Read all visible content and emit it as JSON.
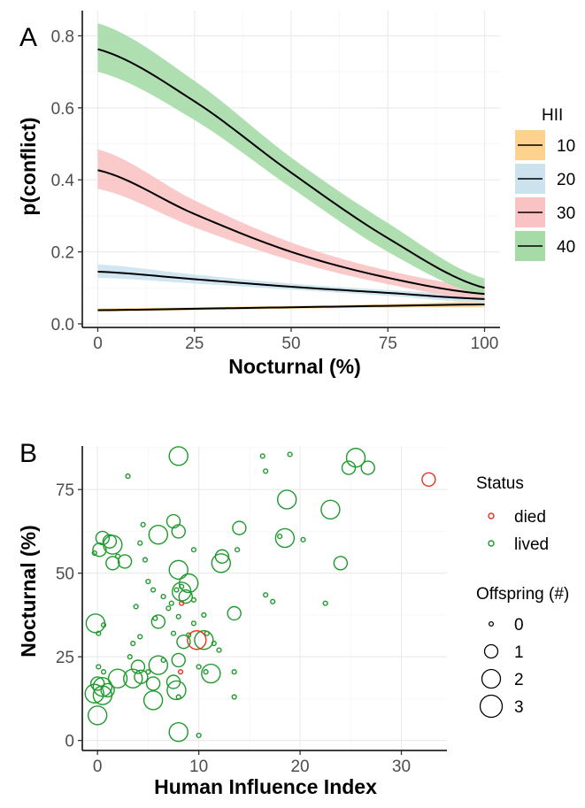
{
  "chart_data": [
    {
      "panel": "A",
      "type": "line",
      "xlabel": "Nocturnal (%)",
      "ylabel": "p(conflict)",
      "xlim": [
        -4,
        104
      ],
      "ylim": [
        -0.01,
        0.87
      ],
      "x_ticks": [
        "0",
        "25",
        "50",
        "75",
        "100"
      ],
      "x_tick_values": [
        0,
        25,
        50,
        75,
        100
      ],
      "y_ticks": [
        "0.0",
        "0.2",
        "0.4",
        "0.6",
        "0.8"
      ],
      "y_tick_values": [
        0.0,
        0.2,
        0.4,
        0.6,
        0.8
      ],
      "grid": true,
      "legend": {
        "title": "HII",
        "position": "right"
      },
      "series": [
        {
          "name": "10",
          "color": "#fdd28e",
          "x": [
            0,
            25,
            50,
            75,
            100
          ],
          "y": [
            0.038,
            0.042,
            0.046,
            0.05,
            0.054
          ],
          "lower": [
            0.034,
            0.038,
            0.042,
            0.045,
            0.046
          ],
          "upper": [
            0.043,
            0.046,
            0.05,
            0.055,
            0.062
          ]
        },
        {
          "name": "20",
          "color": "#cce3ee",
          "x": [
            0,
            25,
            50,
            75,
            100
          ],
          "y": [
            0.145,
            0.124,
            0.103,
            0.086,
            0.069
          ],
          "lower": [
            0.128,
            0.112,
            0.095,
            0.078,
            0.058
          ],
          "upper": [
            0.165,
            0.137,
            0.112,
            0.094,
            0.081
          ]
        },
        {
          "name": "30",
          "color": "#f9c3c3",
          "x": [
            0,
            25,
            50,
            75,
            100
          ],
          "y": [
            0.427,
            0.305,
            0.2,
            0.128,
            0.083
          ],
          "lower": [
            0.375,
            0.268,
            0.176,
            0.11,
            0.066
          ],
          "upper": [
            0.485,
            0.343,
            0.226,
            0.148,
            0.102
          ]
        },
        {
          "name": "40",
          "color": "#a6dba7",
          "x": [
            0,
            25,
            50,
            75,
            100
          ],
          "y": [
            0.763,
            0.618,
            0.42,
            0.238,
            0.1
          ],
          "lower": [
            0.7,
            0.566,
            0.378,
            0.2,
            0.077
          ],
          "upper": [
            0.835,
            0.675,
            0.462,
            0.28,
            0.126
          ]
        }
      ]
    },
    {
      "panel": "B",
      "type": "scatter",
      "xlabel": "Human Influence Index",
      "ylabel": "Nocturnal (%)",
      "xlim": [
        -1.5,
        34.5
      ],
      "ylim": [
        -3,
        88
      ],
      "x_ticks": [
        "0",
        "10",
        "20",
        "30"
      ],
      "x_tick_values": [
        0,
        10,
        20,
        30
      ],
      "y_ticks": [
        "0",
        "25",
        "50",
        "75"
      ],
      "y_tick_values": [
        0,
        25,
        50,
        75
      ],
      "grid": true,
      "status_legend": {
        "title": "Status",
        "entries": [
          {
            "label": "died",
            "color": "#e8321e"
          },
          {
            "label": "lived",
            "color": "#1e9a2d"
          }
        ]
      },
      "size_legend": {
        "title": "Offspring (#)",
        "entries": [
          {
            "label": "0",
            "size": 0
          },
          {
            "label": "1",
            "size": 1
          },
          {
            "label": "2",
            "size": 2
          },
          {
            "label": "3",
            "size": 3
          }
        ]
      },
      "points": [
        [
          8.0,
          85.0,
          2,
          "lived"
        ],
        [
          3.0,
          79.0,
          0,
          "lived"
        ],
        [
          16.3,
          85.0,
          0,
          "lived"
        ],
        [
          19.0,
          85.5,
          0,
          "lived"
        ],
        [
          16.6,
          80.5,
          0,
          "lived"
        ],
        [
          25.5,
          84.5,
          2,
          "lived"
        ],
        [
          24.8,
          81.5,
          1,
          "lived"
        ],
        [
          26.7,
          81.5,
          1,
          "lived"
        ],
        [
          32.7,
          78.0,
          1,
          "died"
        ],
        [
          18.7,
          72.0,
          2,
          "lived"
        ],
        [
          23.0,
          69.0,
          2,
          "lived"
        ],
        [
          7.5,
          65.5,
          1,
          "lived"
        ],
        [
          8.0,
          62.5,
          1,
          "lived"
        ],
        [
          6.0,
          61.5,
          2,
          "lived"
        ],
        [
          14.0,
          63.5,
          1,
          "lived"
        ],
        [
          18.5,
          60.5,
          2,
          "lived"
        ],
        [
          20.3,
          60.0,
          0,
          "lived"
        ],
        [
          18.0,
          61.0,
          0,
          "lived"
        ],
        [
          24.0,
          53.0,
          1,
          "lived"
        ],
        [
          0.5,
          60.5,
          1,
          "lived"
        ],
        [
          1.2,
          59.5,
          1,
          "lived"
        ],
        [
          1.5,
          58.5,
          2,
          "lived"
        ],
        [
          0.2,
          57.0,
          1,
          "lived"
        ],
        [
          -0.3,
          56.0,
          0,
          "lived"
        ],
        [
          2.0,
          55.0,
          0,
          "lived"
        ],
        [
          1.5,
          53.0,
          1,
          "lived"
        ],
        [
          2.7,
          53.5,
          1,
          "lived"
        ],
        [
          4.7,
          54.0,
          0,
          "lived"
        ],
        [
          4.2,
          59.0,
          0,
          "lived"
        ],
        [
          4.5,
          64.5,
          0,
          "lived"
        ],
        [
          12.3,
          55.0,
          1,
          "lived"
        ],
        [
          12.2,
          53.0,
          2,
          "lived"
        ],
        [
          13.8,
          57.0,
          0,
          "lived"
        ],
        [
          8.0,
          51.0,
          2,
          "lived"
        ],
        [
          9.5,
          57.0,
          0,
          "lived"
        ],
        [
          -0.2,
          35.0,
          2,
          "lived"
        ],
        [
          0.1,
          32.0,
          0,
          "lived"
        ],
        [
          0.6,
          34.5,
          0,
          "lived"
        ],
        [
          9.0,
          47.0,
          2,
          "lived"
        ],
        [
          8.3,
          46.0,
          0,
          "lived"
        ],
        [
          7.8,
          45.0,
          0,
          "lived"
        ],
        [
          8.3,
          44.5,
          2,
          "lived"
        ],
        [
          8.7,
          43.0,
          1,
          "lived"
        ],
        [
          7.3,
          41.0,
          0,
          "lived"
        ],
        [
          9.5,
          42.0,
          0,
          "lived"
        ],
        [
          5.0,
          47.5,
          0,
          "lived"
        ],
        [
          5.5,
          45.0,
          0,
          "lived"
        ],
        [
          6.5,
          43.0,
          0,
          "lived"
        ],
        [
          3.8,
          40.0,
          0,
          "lived"
        ],
        [
          7.0,
          39.5,
          0,
          "lived"
        ],
        [
          8.0,
          37.0,
          0,
          "lived"
        ],
        [
          10.5,
          37.5,
          0,
          "lived"
        ],
        [
          9.5,
          35.0,
          0,
          "lived"
        ],
        [
          8.3,
          41.0,
          0,
          "died"
        ],
        [
          5.7,
          36.5,
          0,
          "lived"
        ],
        [
          6.0,
          35.5,
          1,
          "lived"
        ],
        [
          4.2,
          31.0,
          0,
          "lived"
        ],
        [
          3.5,
          29.0,
          0,
          "lived"
        ],
        [
          7.5,
          32.0,
          0,
          "lived"
        ],
        [
          9.0,
          31.5,
          0,
          "lived"
        ],
        [
          10.8,
          32.0,
          0,
          "lived"
        ],
        [
          11.5,
          29.0,
          0,
          "lived"
        ],
        [
          12.0,
          27.0,
          0,
          "lived"
        ],
        [
          10.5,
          30.0,
          2,
          "lived"
        ],
        [
          9.8,
          30.0,
          2,
          "died"
        ],
        [
          8.5,
          29.5,
          1,
          "lived"
        ],
        [
          3.2,
          25.0,
          0,
          "lived"
        ],
        [
          4.0,
          22.0,
          1,
          "lived"
        ],
        [
          5.0,
          20.5,
          0,
          "lived"
        ],
        [
          6.5,
          24.0,
          0,
          "lived"
        ],
        [
          6.0,
          22.5,
          2,
          "lived"
        ],
        [
          8.0,
          24.0,
          1,
          "lived"
        ],
        [
          10.0,
          22.0,
          0,
          "lived"
        ],
        [
          10.7,
          20.5,
          0,
          "lived"
        ],
        [
          11.2,
          20.0,
          2,
          "lived"
        ],
        [
          13.5,
          20.5,
          0,
          "lived"
        ],
        [
          13.5,
          38.0,
          1,
          "lived"
        ],
        [
          16.6,
          43.5,
          0,
          "lived"
        ],
        [
          17.3,
          41.5,
          0,
          "lived"
        ],
        [
          22.5,
          41.0,
          0,
          "lived"
        ],
        [
          8.2,
          20.5,
          0,
          "died"
        ],
        [
          0.1,
          22.0,
          0,
          "lived"
        ],
        [
          0.0,
          17.0,
          1,
          "lived"
        ],
        [
          0.5,
          16.0,
          2,
          "lived"
        ],
        [
          -0.3,
          14.0,
          2,
          "lived"
        ],
        [
          0.5,
          13.5,
          2,
          "lived"
        ],
        [
          1.0,
          15.0,
          1,
          "lived"
        ],
        [
          2.0,
          18.5,
          2,
          "lived"
        ],
        [
          3.5,
          18.5,
          2,
          "lived"
        ],
        [
          4.3,
          19.0,
          1,
          "lived"
        ],
        [
          5.5,
          17.0,
          1,
          "lived"
        ],
        [
          7.5,
          17.5,
          1,
          "lived"
        ],
        [
          7.8,
          15.0,
          2,
          "lived"
        ],
        [
          5.5,
          12.0,
          2,
          "lived"
        ],
        [
          8.0,
          13.0,
          0,
          "lived"
        ],
        [
          13.5,
          13.0,
          0,
          "lived"
        ],
        [
          0.0,
          7.5,
          2,
          "lived"
        ],
        [
          8.0,
          2.5,
          2,
          "lived"
        ],
        [
          10.0,
          1.5,
          0,
          "lived"
        ],
        [
          0.6,
          20.5,
          0,
          "lived"
        ]
      ]
    }
  ]
}
